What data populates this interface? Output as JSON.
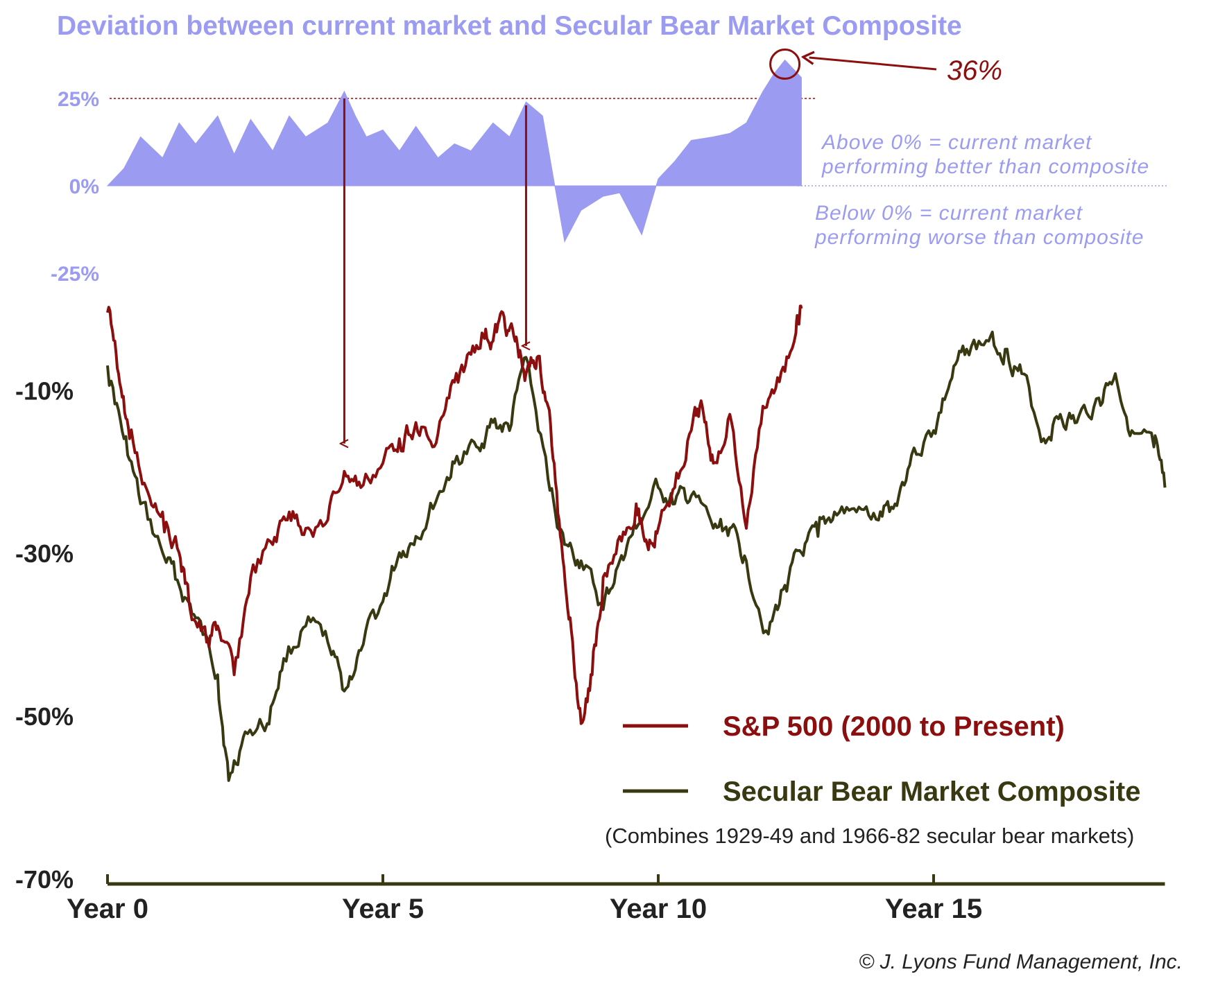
{
  "title": "Deviation between current market and Secular Bear Market Composite",
  "colors": {
    "title": "#9b9bf2",
    "deviation_fill": "#9b9bf2",
    "sp500": "#8b0f0f",
    "composite": "#383811",
    "axis": "#383811",
    "text_dark": "#222222",
    "callout": "#8b0f0f"
  },
  "chart_data": [
    {
      "type": "area",
      "name": "deviation",
      "title": "Deviation between current market and Secular Bear Market Composite",
      "y_tick_labels": [
        "25%",
        "0%",
        "-25%"
      ],
      "y_ticks": [
        25,
        0,
        -25
      ],
      "ylim": [
        -25,
        36
      ],
      "reference_line": 25,
      "x": [
        0,
        0.3,
        0.6,
        1.0,
        1.3,
        1.6,
        2.0,
        2.3,
        2.6,
        3.0,
        3.3,
        3.6,
        4.0,
        4.3,
        4.5,
        4.7,
        5.0,
        5.3,
        5.6,
        6.0,
        6.3,
        6.6,
        7.0,
        7.3,
        7.6,
        7.9,
        8.1,
        8.3,
        8.6,
        9.0,
        9.3,
        9.7,
        10.0,
        10.3,
        10.6,
        11.0,
        11.3,
        11.6,
        11.9,
        12.1,
        12.3,
        12.6
      ],
      "values": [
        0,
        5,
        14,
        8,
        18,
        12,
        20,
        9,
        19,
        10,
        20,
        14,
        18,
        27,
        20,
        14,
        16,
        10,
        17,
        8,
        12,
        10,
        18,
        14,
        24,
        20,
        2,
        -16,
        -7,
        -3,
        -2,
        -14,
        2,
        7,
        13,
        14,
        15,
        18,
        27,
        32,
        36,
        31
      ],
      "callout_label": "36%",
      "callout_value": 36,
      "notes": [
        {
          "line1": "Above 0% = current market",
          "line2": "performing better than composite"
        },
        {
          "line1": "Below 0% = current market",
          "line2": "performing worse than composite"
        }
      ]
    },
    {
      "type": "line",
      "name": "main",
      "xlabel": "",
      "ylabel": "",
      "x_tick_labels": [
        "Year 0",
        "Year 5",
        "Year 10",
        "Year 15"
      ],
      "x_ticks": [
        0,
        5,
        10,
        15
      ],
      "xlim": [
        0,
        19.2
      ],
      "y_tick_labels": [
        "-10%",
        "-30%",
        "-50%",
        "-70%"
      ],
      "y_ticks": [
        -10,
        -30,
        -50,
        -70
      ],
      "ylim": [
        -70,
        2
      ],
      "series": [
        {
          "name": "S&P 500 (2000 to Present)",
          "x": [
            0,
            0.2,
            0.4,
            0.7,
            1.0,
            1.3,
            1.5,
            1.8,
            2.0,
            2.3,
            2.6,
            3.0,
            3.3,
            3.6,
            4.0,
            4.3,
            4.6,
            5.0,
            5.3,
            5.6,
            5.9,
            6.2,
            6.5,
            6.8,
            7.0,
            7.2,
            7.4,
            7.6,
            7.8,
            8.0,
            8.2,
            8.4,
            8.6,
            8.8,
            9.0,
            9.3,
            9.6,
            9.8,
            10.0,
            10.3,
            10.6,
            10.8,
            11.0,
            11.3,
            11.6,
            11.9,
            12.2,
            12.5,
            12.6
          ],
          "values": [
            -0.5,
            -8,
            -16,
            -22,
            -25,
            -30,
            -37,
            -41,
            -39,
            -45,
            -33,
            -29,
            -25,
            -27,
            -26,
            -20,
            -22,
            -19,
            -16,
            -14,
            -17,
            -11,
            -7,
            -3,
            -4,
            -1,
            -4,
            -8,
            -6,
            -12,
            -26,
            -38,
            -51,
            -45,
            -33,
            -28,
            -24,
            -29,
            -27,
            -22,
            -15,
            -12,
            -19,
            -13,
            -27,
            -12,
            -9,
            -3,
            0
          ]
        },
        {
          "name": "Secular Bear Market Composite",
          "x": [
            0,
            0.3,
            0.6,
            1.0,
            1.3,
            1.6,
            2.0,
            2.2,
            2.5,
            2.9,
            3.2,
            3.6,
            4.0,
            4.3,
            4.6,
            5.0,
            5.3,
            5.6,
            6.0,
            6.3,
            6.7,
            7.0,
            7.3,
            7.6,
            8.0,
            8.3,
            8.6,
            9.0,
            9.3,
            9.6,
            10.0,
            10.3,
            10.6,
            11.0,
            11.3,
            11.6,
            12.0,
            12.3,
            12.6,
            12.9,
            13.2,
            13.6,
            14.0,
            14.3,
            14.6,
            15.0,
            15.3,
            15.6,
            16.0,
            16.3,
            16.6,
            17.0,
            17.3,
            17.6,
            18.0,
            18.3,
            18.6,
            19.0,
            19.2
          ],
          "values": [
            -7,
            -16,
            -24,
            -30,
            -34,
            -38,
            -45,
            -58,
            -52,
            -51,
            -43,
            -39,
            -41,
            -47,
            -42,
            -36,
            -30,
            -28,
            -23,
            -19,
            -17,
            -14,
            -15,
            -6,
            -21,
            -29,
            -31,
            -37,
            -31,
            -27,
            -22,
            -24,
            -23,
            -27,
            -27,
            -31,
            -40,
            -34,
            -30,
            -28,
            -25,
            -25,
            -26,
            -24,
            -18,
            -15,
            -9,
            -5,
            -4,
            -5,
            -8,
            -16,
            -13,
            -14,
            -11,
            -8,
            -15,
            -17,
            -22
          ]
        }
      ],
      "legend": [
        {
          "label": "S&P 500 (2000 to Present)",
          "color": "#8b0f0f"
        },
        {
          "label": "Secular Bear Market Composite",
          "color": "#383811"
        }
      ],
      "legend_note": "(Combines 1929-49 and 1966-82 secular bear markets)",
      "legend_position": "bottom-right",
      "arrows": [
        {
          "from_deviation": 25,
          "to_sp500_x": 4.3
        },
        {
          "from_deviation": 25,
          "to_sp500_x": 7.6
        }
      ]
    }
  ],
  "copyright": "© J. Lyons Fund Management, Inc."
}
